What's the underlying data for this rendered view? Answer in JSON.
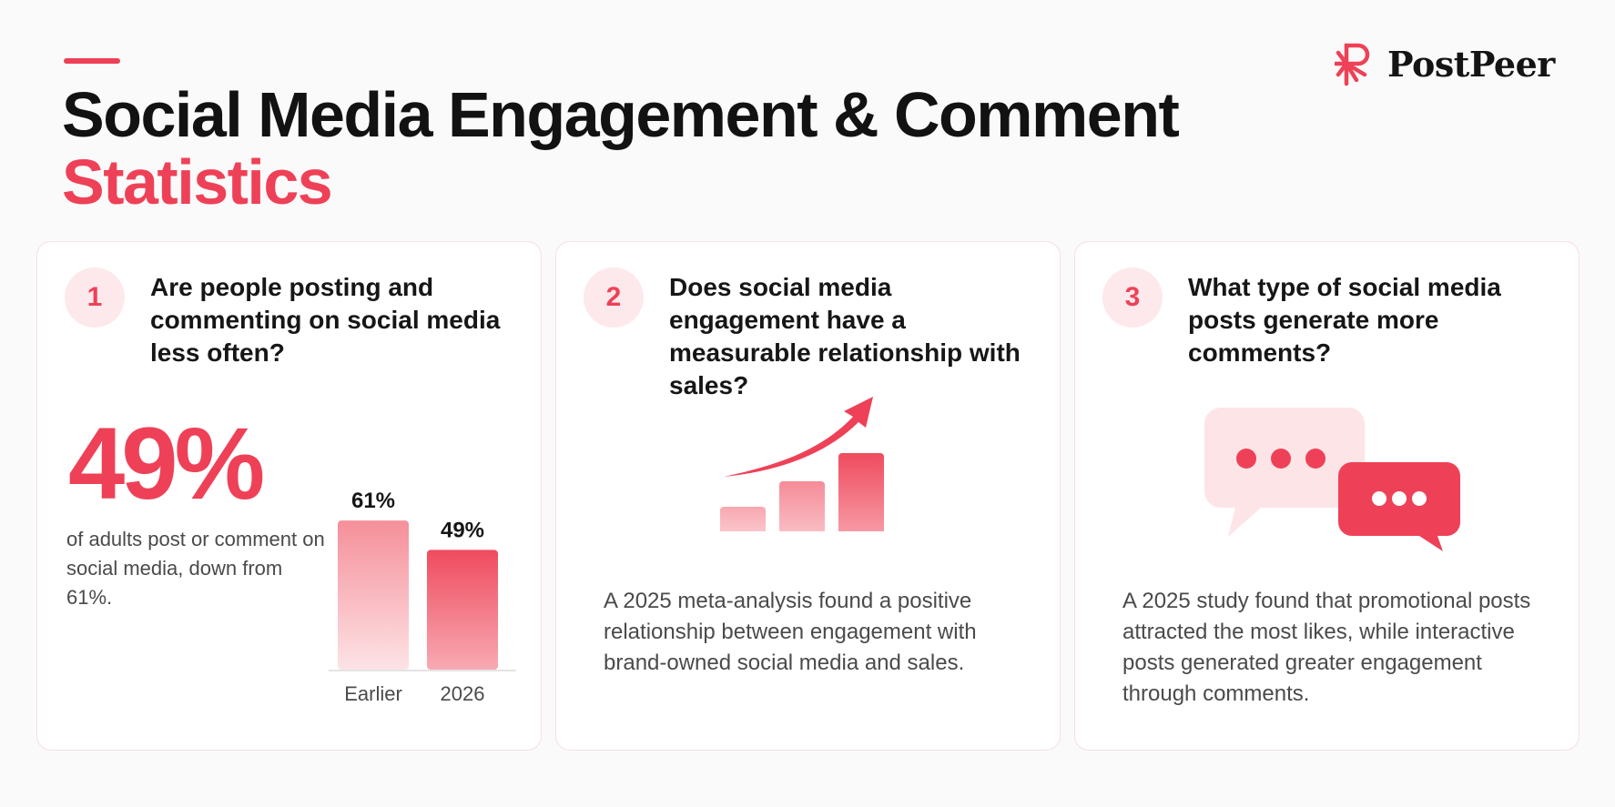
{
  "header": {
    "title_line1": "Social Media Engagement & Comment",
    "title_line2": "Statistics",
    "brand": "PostPeer"
  },
  "colors": {
    "accent": "#ee4157",
    "accent_light": "#fde9eb",
    "text": "#141414",
    "muted": "#4a4a4a"
  },
  "cards": [
    {
      "number": "1",
      "question": "Are people posting and commenting on social media less often?",
      "stat": "49%",
      "description": "of adults post or comment on social media, down from 61%."
    },
    {
      "number": "2",
      "question": "Does social media engagement have a measurable relationship with sales?",
      "icon": "growth-chart-arrow-icon",
      "description": "A 2025 meta-analysis found a positive relationship between engagement with brand-owned social media and sales."
    },
    {
      "number": "3",
      "question": "What type of social media posts generate more comments?",
      "icon": "chat-bubbles-icon",
      "description": "A 2025 study found that promotional posts attracted the most likes, while interactive posts generated greater engagement through comments."
    }
  ],
  "chart_data": {
    "type": "bar",
    "categories": [
      "Earlier",
      "2026"
    ],
    "values": [
      61,
      49
    ],
    "value_labels": [
      "61%",
      "49%"
    ],
    "title": "",
    "xlabel": "",
    "ylabel": "",
    "ylim": [
      0,
      70
    ]
  }
}
